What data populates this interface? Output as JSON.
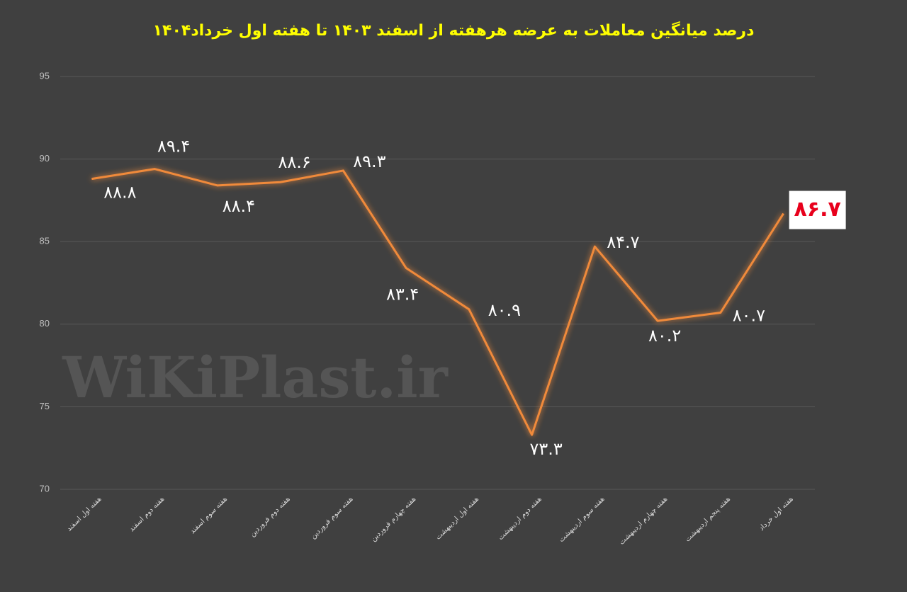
{
  "chart_data": {
    "type": "line",
    "title": "درصد میانگین معاملات به عرضه هرهفته از اسفند ۱۴۰۳ تا هفته اول خرداد۱۴۰۴",
    "watermark": "WiKiPlast.ir",
    "categories": [
      "هفته اول اسفند",
      "هفته دوم اسفند",
      "هفته سوم اسفند",
      "هفته دوم فروردین",
      "هفته سوم فروردین",
      "هفته چهارم فروردین",
      "هفته اول اردیبهشت",
      "هفته دوم اردیبهشت",
      "هفته سوم اردیبهشت",
      "هفته چهارم اردیبهشت",
      "هفته پنجم اردیبهشت",
      "هفته اول خرداد"
    ],
    "values": [
      88.8,
      89.4,
      88.4,
      88.6,
      89.3,
      83.4,
      80.9,
      73.3,
      84.7,
      80.2,
      80.7,
      86.7
    ],
    "value_labels": [
      "۸۸.۸",
      "۸۹.۴",
      "۸۸.۴",
      "۸۸.۶",
      "۸۹.۳",
      "۸۳.۴",
      "۸۰.۹",
      "۷۳.۳",
      "۸۴.۷",
      "۸۰.۲",
      "۸۰.۷",
      "۸۶.۷"
    ],
    "color": "#f08a3a",
    "ylim": [
      70,
      95
    ],
    "yticks": [
      70,
      75,
      80,
      85,
      90,
      95
    ],
    "grid": true
  }
}
